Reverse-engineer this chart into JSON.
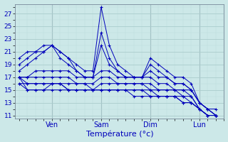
{
  "xlabel": "Température (°c)",
  "ylim": [
    10.5,
    28.5
  ],
  "xlim": [
    -2,
    100
  ],
  "yticks": [
    11,
    13,
    15,
    17,
    19,
    21,
    23,
    25,
    27
  ],
  "xtick_positions": [
    16,
    40,
    64,
    88
  ],
  "xtick_labels": [
    "Ven",
    "Sam",
    "Dim",
    "Lun"
  ],
  "bg_color": "#cce8e8",
  "line_color": "#0000bb",
  "grid_major_color": "#aacccc",
  "grid_minor_color": "#bbdddd",
  "lines": [
    [
      0,
      20,
      4,
      21,
      8,
      21,
      12,
      22,
      16,
      22,
      20,
      21,
      24,
      20,
      28,
      19,
      32,
      18,
      36,
      18,
      40,
      28,
      44,
      22,
      48,
      19,
      52,
      18,
      56,
      17,
      60,
      17,
      64,
      20,
      68,
      19,
      72,
      18,
      76,
      17,
      80,
      17,
      84,
      16,
      88,
      13,
      92,
      12,
      96,
      11
    ],
    [
      0,
      19,
      4,
      20,
      8,
      21,
      12,
      21,
      16,
      22,
      20,
      21,
      24,
      20,
      28,
      18,
      32,
      17,
      36,
      17,
      40,
      24,
      44,
      20,
      48,
      18,
      52,
      17,
      56,
      17,
      60,
      17,
      64,
      19,
      68,
      18,
      72,
      17,
      76,
      16,
      80,
      16,
      84,
      15,
      88,
      13,
      92,
      12,
      96,
      11
    ],
    [
      0,
      18,
      4,
      19,
      8,
      20,
      12,
      21,
      16,
      22,
      20,
      20,
      24,
      19,
      28,
      18,
      32,
      17,
      36,
      17,
      40,
      22,
      44,
      19,
      48,
      18,
      52,
      17,
      56,
      17,
      60,
      17,
      64,
      18,
      68,
      17,
      72,
      17,
      76,
      16,
      80,
      16,
      84,
      15,
      88,
      13,
      92,
      12,
      96,
      11
    ],
    [
      0,
      17,
      4,
      17,
      8,
      18,
      12,
      18,
      16,
      18,
      20,
      18,
      24,
      18,
      28,
      17,
      32,
      17,
      36,
      17,
      40,
      18,
      44,
      18,
      48,
      17,
      52,
      17,
      56,
      17,
      60,
      17,
      64,
      17,
      68,
      16,
      72,
      16,
      76,
      15,
      80,
      15,
      84,
      15,
      88,
      13,
      92,
      12,
      96,
      12
    ],
    [
      0,
      17,
      4,
      17,
      8,
      17,
      12,
      17,
      16,
      17,
      20,
      17,
      24,
      17,
      28,
      16,
      32,
      16,
      36,
      16,
      40,
      17,
      44,
      17,
      48,
      16,
      52,
      16,
      56,
      16,
      60,
      16,
      64,
      16,
      68,
      15,
      72,
      15,
      76,
      15,
      80,
      15,
      84,
      14,
      88,
      12,
      92,
      11,
      96,
      11
    ],
    [
      0,
      17,
      4,
      16,
      8,
      16,
      12,
      16,
      16,
      16,
      20,
      16,
      24,
      16,
      28,
      16,
      32,
      16,
      36,
      15,
      40,
      16,
      44,
      16,
      48,
      16,
      52,
      16,
      56,
      16,
      60,
      16,
      64,
      15,
      68,
      15,
      72,
      15,
      76,
      15,
      80,
      14,
      84,
      14,
      88,
      12,
      92,
      11,
      96,
      11
    ],
    [
      0,
      16,
      4,
      16,
      8,
      16,
      12,
      16,
      16,
      16,
      20,
      16,
      24,
      15,
      28,
      15,
      32,
      15,
      36,
      15,
      40,
      15,
      44,
      15,
      48,
      15,
      52,
      15,
      56,
      15,
      60,
      15,
      64,
      15,
      68,
      14,
      72,
      14,
      76,
      14,
      80,
      14,
      84,
      13,
      88,
      12,
      92,
      11,
      96,
      11
    ],
    [
      0,
      16,
      4,
      15,
      8,
      15,
      12,
      15,
      16,
      16,
      20,
      16,
      24,
      15,
      28,
      15,
      32,
      15,
      36,
      15,
      40,
      15,
      44,
      15,
      48,
      15,
      52,
      15,
      56,
      15,
      60,
      15,
      64,
      14,
      68,
      14,
      72,
      14,
      76,
      14,
      80,
      13,
      84,
      13,
      88,
      12,
      92,
      11,
      96,
      11
    ],
    [
      0,
      17,
      4,
      15,
      8,
      15,
      12,
      15,
      16,
      15,
      20,
      15,
      24,
      15,
      28,
      15,
      32,
      15,
      36,
      15,
      40,
      15,
      44,
      15,
      48,
      15,
      52,
      15,
      56,
      14,
      60,
      14,
      64,
      14,
      68,
      14,
      72,
      14,
      76,
      14,
      80,
      13,
      84,
      13,
      88,
      12,
      92,
      11,
      96,
      11
    ]
  ],
  "vlines": [
    16,
    40,
    64,
    88
  ]
}
